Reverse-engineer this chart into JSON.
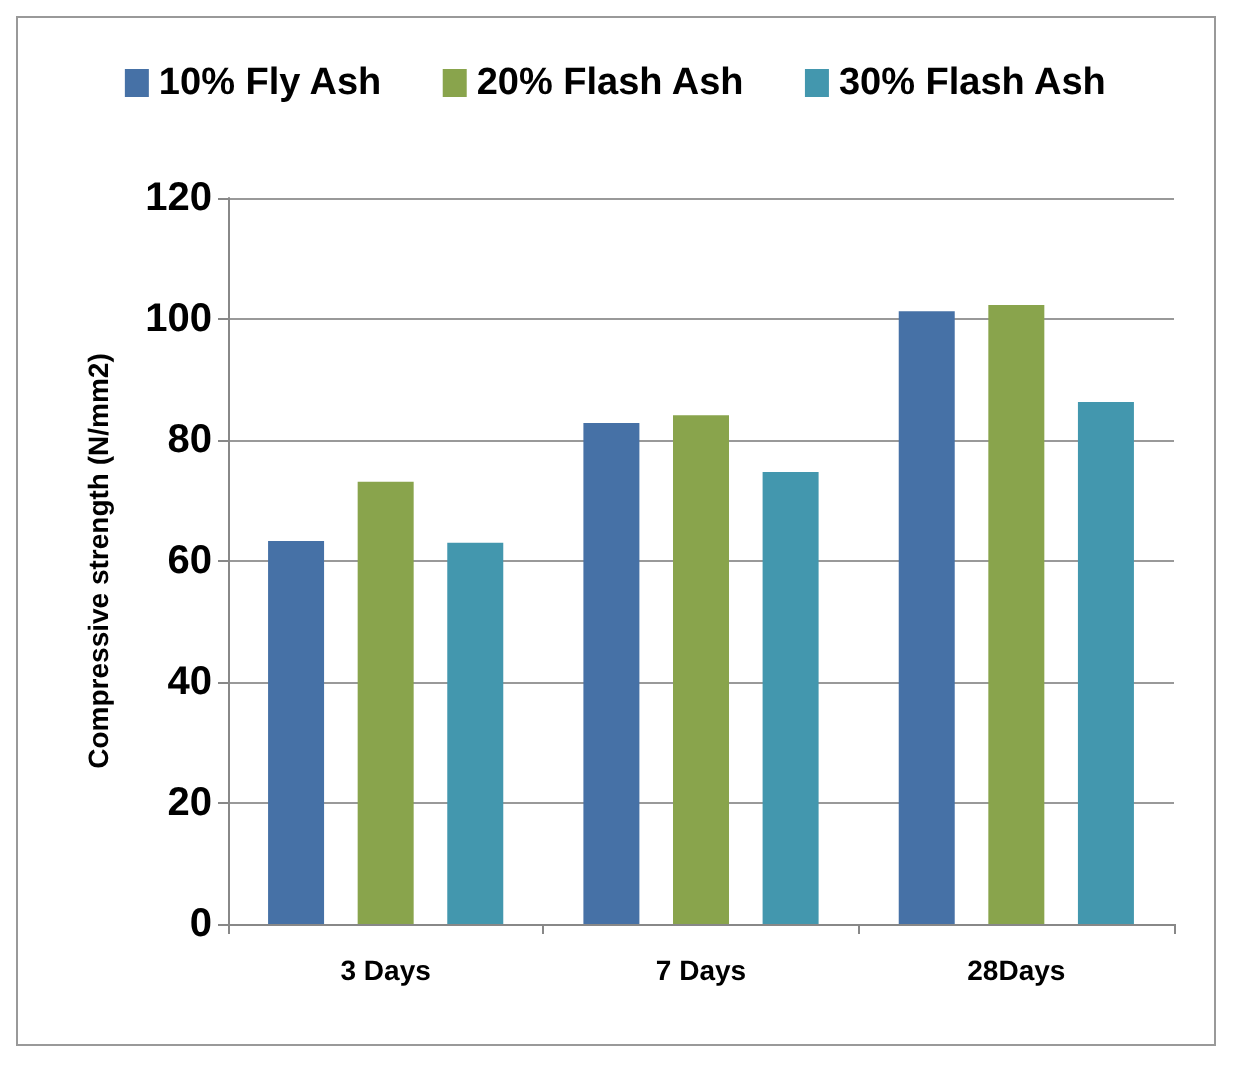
{
  "chart_data": {
    "type": "bar",
    "ylabel": "Compressive strength (N/mm2)",
    "categories": [
      "3 Days",
      "7 Days",
      "28Days"
    ],
    "series": [
      {
        "name": "10% Fly Ash",
        "color": "#4671a6",
        "values": [
          63.3,
          82.8,
          101.3
        ]
      },
      {
        "name": "20% Flash Ash",
        "color": "#89a44c",
        "values": [
          73.1,
          84.1,
          102.3
        ]
      },
      {
        "name": "30% Flash Ash",
        "color": "#4397ae",
        "values": [
          63,
          74.7,
          86.3
        ]
      }
    ],
    "ylim": [
      0,
      120
    ],
    "yticks": [
      0,
      20,
      40,
      60,
      80,
      100,
      120
    ],
    "grid": "y",
    "legend": "top"
  }
}
